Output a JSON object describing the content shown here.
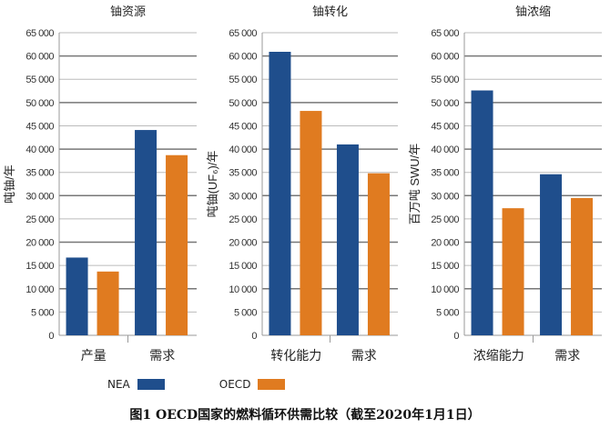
{
  "chart_data": [
    {
      "type": "bar",
      "title": "铀资源",
      "ylabel": "吨铀/年",
      "categories": [
        "产量",
        "需求"
      ],
      "series": [
        {
          "name": "NEA",
          "values": [
            16700,
            44100
          ]
        },
        {
          "name": "OECD",
          "values": [
            13700,
            38700
          ]
        }
      ],
      "ylim": [
        0,
        65000
      ],
      "yticks": [
        0,
        5000,
        10000,
        15000,
        20000,
        25000,
        30000,
        35000,
        40000,
        45000,
        50000,
        55000,
        60000,
        65000
      ],
      "ytick_labels": [
        "0",
        "5 000",
        "10 000",
        "15 000",
        "20 000",
        "25 000",
        "30 000",
        "35 000",
        "40 000",
        "45 000",
        "50 000",
        "55 000",
        "60 000",
        "65 000"
      ],
      "grid": true
    },
    {
      "type": "bar",
      "title": "铀转化",
      "ylabel": "吨铀(UF₆)/年",
      "categories": [
        "转化能力",
        "需求"
      ],
      "series": [
        {
          "name": "NEA",
          "values": [
            60900,
            41000
          ]
        },
        {
          "name": "OECD",
          "values": [
            48200,
            34800
          ]
        }
      ],
      "ylim": [
        0,
        65000
      ],
      "yticks": [
        0,
        5000,
        10000,
        15000,
        20000,
        25000,
        30000,
        35000,
        40000,
        45000,
        50000,
        55000,
        60000,
        65000
      ],
      "ytick_labels": [
        "0",
        "5 000",
        "10 000",
        "15 000",
        "20 000",
        "25 000",
        "30 000",
        "35 000",
        "40 000",
        "45 000",
        "50 000",
        "55 000",
        "60 000",
        "65 000"
      ],
      "grid": true
    },
    {
      "type": "bar",
      "title": "铀浓缩",
      "ylabel": "百万吨 SWU/年",
      "categories": [
        "浓缩能力",
        "需求"
      ],
      "series": [
        {
          "name": "NEA",
          "values": [
            52600,
            34600
          ]
        },
        {
          "name": "OECD",
          "values": [
            27300,
            29500
          ]
        }
      ],
      "ylim": [
        0,
        65000
      ],
      "yticks": [
        0,
        5000,
        10000,
        15000,
        20000,
        25000,
        30000,
        35000,
        40000,
        45000,
        50000,
        55000,
        60000,
        65000
      ],
      "ytick_labels": [
        "0",
        "5 000",
        "10 000",
        "15 000",
        "20 000",
        "25 000",
        "30 000",
        "35 000",
        "40 000",
        "45 000",
        "50 000",
        "55 000",
        "60 000",
        "65 000"
      ],
      "grid": true
    }
  ],
  "legend": {
    "placement": "bottom",
    "items": [
      {
        "label": "NEA",
        "color": "#1f4e8c"
      },
      {
        "label": "OECD",
        "color": "#e07b20"
      }
    ]
  },
  "caption": "图1 OECD国家的燃料循环供需比较（截至2020年1月1日）"
}
